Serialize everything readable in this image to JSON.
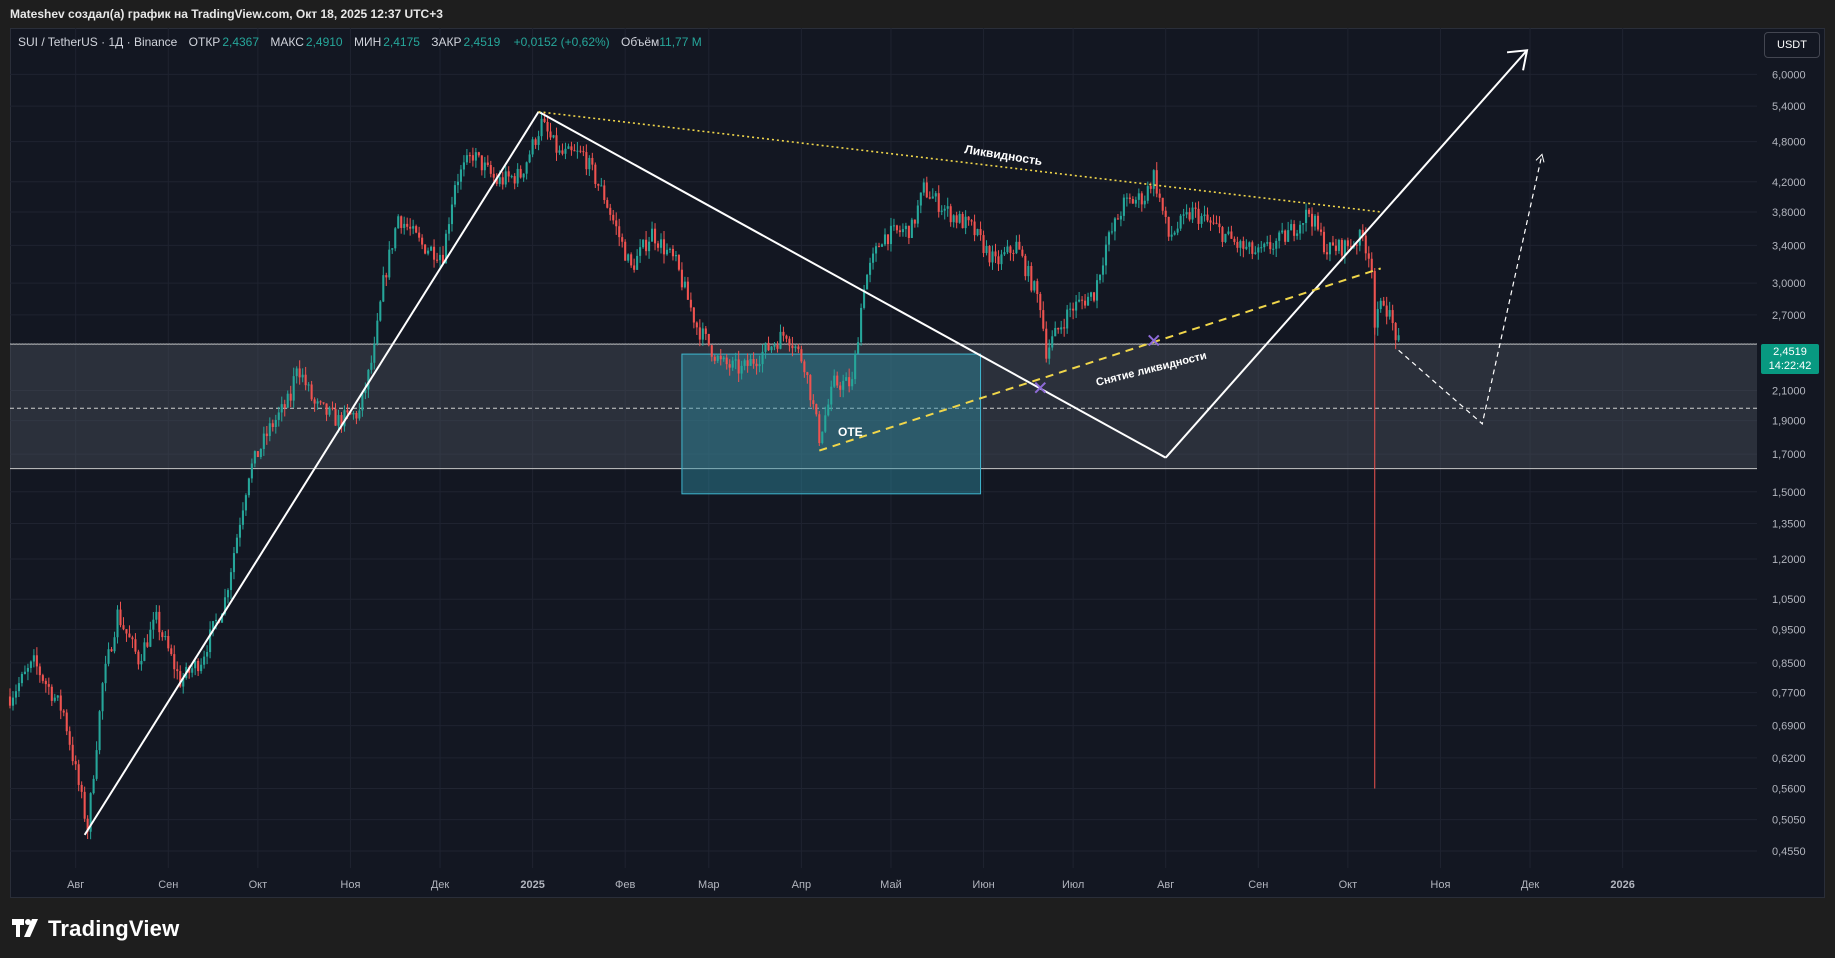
{
  "header": {
    "caption": "Mateshev создал(а) график на TradingView.com, Окт 18, 2025 12:37 UTC+3"
  },
  "legend": {
    "symbol": "SUI / TetherUS · 1Д · Binance",
    "open_label": "ОТКР",
    "open": "2,4367",
    "high_label": "МАКС",
    "high": "2,4910",
    "low_label": "МИН",
    "low": "2,4175",
    "close_label": "ЗАКР",
    "close": "2,4519",
    "change": "+0,0152 (+0,62%)",
    "volume_label": "Объём",
    "volume": "11,77 M"
  },
  "currency_button": "USDT",
  "last_price": {
    "value": "2,4519",
    "countdown": "14:22:42"
  },
  "annotations": {
    "liquidity": "Ликвидность",
    "liquidity_sweep": "Снятие ликвидности",
    "ote": "OTE"
  },
  "logo": "TradingView",
  "colors": {
    "up": "#26a69a",
    "down": "#ef5350",
    "background": "#131722",
    "zone": "#4a4f5c",
    "ote_box": "#2f8fa3",
    "trendline": "#ffffff",
    "liquidity_line": "#f0d64a"
  },
  "chart_data": {
    "type": "candlestick",
    "title": "SUI / TetherUS · 1Д · Binance",
    "y_scale": "log",
    "ylim": [
      0.43,
      7.0
    ],
    "y_ticks": [
      {
        "value": 6.0,
        "label": "6,0000"
      },
      {
        "value": 5.4,
        "label": "5,4000"
      },
      {
        "value": 4.8,
        "label": "4,8000"
      },
      {
        "value": 4.2,
        "label": "4,2000"
      },
      {
        "value": 3.8,
        "label": "3,8000"
      },
      {
        "value": 3.4,
        "label": "3,4000"
      },
      {
        "value": 3.0,
        "label": "3,0000"
      },
      {
        "value": 2.7,
        "label": "2,7000"
      },
      {
        "value": 2.1,
        "label": "2,1000"
      },
      {
        "value": 1.9,
        "label": "1,9000"
      },
      {
        "value": 1.7,
        "label": "1,7000"
      },
      {
        "value": 1.5,
        "label": "1,5000"
      },
      {
        "value": 1.35,
        "label": "1,3500"
      },
      {
        "value": 1.2,
        "label": "1,2000"
      },
      {
        "value": 1.05,
        "label": "1,0500"
      },
      {
        "value": 0.95,
        "label": "0,9500"
      },
      {
        "value": 0.85,
        "label": "0,8500"
      },
      {
        "value": 0.77,
        "label": "0,7700"
      },
      {
        "value": 0.69,
        "label": "0,6900"
      },
      {
        "value": 0.62,
        "label": "0,6200"
      },
      {
        "value": 0.56,
        "label": "0,5600"
      },
      {
        "value": 0.505,
        "label": "0,5050"
      },
      {
        "value": 0.455,
        "label": "0,4550"
      }
    ],
    "x_ticks": [
      {
        "date": "2024-08-01",
        "label": "Авг"
      },
      {
        "date": "2024-09-01",
        "label": "Сен"
      },
      {
        "date": "2024-10-01",
        "label": "Окт"
      },
      {
        "date": "2024-11-01",
        "label": "Ноя"
      },
      {
        "date": "2024-12-01",
        "label": "Дек"
      },
      {
        "date": "2025-01-01",
        "label": "2025"
      },
      {
        "date": "2025-02-01",
        "label": "Фев"
      },
      {
        "date": "2025-03-01",
        "label": "Мар"
      },
      {
        "date": "2025-04-01",
        "label": "Апр"
      },
      {
        "date": "2025-05-01",
        "label": "Май"
      },
      {
        "date": "2025-06-01",
        "label": "Июн"
      },
      {
        "date": "2025-07-01",
        "label": "Июл"
      },
      {
        "date": "2025-08-01",
        "label": "Авг"
      },
      {
        "date": "2025-09-01",
        "label": "Сен"
      },
      {
        "date": "2025-10-01",
        "label": "Окт"
      },
      {
        "date": "2025-11-01",
        "label": "Ноя"
      },
      {
        "date": "2025-12-01",
        "label": "Дек"
      },
      {
        "date": "2026-01-01",
        "label": "2026"
      }
    ],
    "xlim": [
      "2024-07-10",
      "2026-02-15"
    ],
    "price_path": [
      {
        "date": "2024-07-10",
        "close": 0.76
      },
      {
        "date": "2024-07-18",
        "close": 0.85
      },
      {
        "date": "2024-07-28",
        "close": 0.72
      },
      {
        "date": "2024-08-05",
        "close": 0.49
      },
      {
        "date": "2024-08-10",
        "close": 0.79
      },
      {
        "date": "2024-08-15",
        "close": 1.0
      },
      {
        "date": "2024-08-22",
        "close": 0.86
      },
      {
        "date": "2024-08-28",
        "close": 0.98
      },
      {
        "date": "2024-09-05",
        "close": 0.8
      },
      {
        "date": "2024-09-12",
        "close": 0.86
      },
      {
        "date": "2024-09-20",
        "close": 1.05
      },
      {
        "date": "2024-09-28",
        "close": 1.6
      },
      {
        "date": "2024-10-05",
        "close": 1.85
      },
      {
        "date": "2024-10-12",
        "close": 2.05
      },
      {
        "date": "2024-10-14",
        "close": 2.3
      },
      {
        "date": "2024-10-20",
        "close": 2.0
      },
      {
        "date": "2024-10-28",
        "close": 1.9
      },
      {
        "date": "2024-11-04",
        "close": 1.95
      },
      {
        "date": "2024-11-09",
        "close": 2.4
      },
      {
        "date": "2024-11-12",
        "close": 3.0
      },
      {
        "date": "2024-11-17",
        "close": 3.75
      },
      {
        "date": "2024-11-25",
        "close": 3.4
      },
      {
        "date": "2024-12-02",
        "close": 3.3
      },
      {
        "date": "2024-12-06",
        "close": 4.2
      },
      {
        "date": "2024-12-12",
        "close": 4.6
      },
      {
        "date": "2024-12-20",
        "close": 4.2
      },
      {
        "date": "2024-12-28",
        "close": 4.3
      },
      {
        "date": "2025-01-04",
        "close": 5.1
      },
      {
        "date": "2025-01-10",
        "close": 4.6
      },
      {
        "date": "2025-01-18",
        "close": 4.6
      },
      {
        "date": "2025-01-25",
        "close": 4.0
      },
      {
        "date": "2025-02-03",
        "close": 3.15
      },
      {
        "date": "2025-02-10",
        "close": 3.55
      },
      {
        "date": "2025-02-18",
        "close": 3.2
      },
      {
        "date": "2025-02-25",
        "close": 2.6
      },
      {
        "date": "2025-03-05",
        "close": 2.3
      },
      {
        "date": "2025-03-12",
        "close": 2.25
      },
      {
        "date": "2025-03-20",
        "close": 2.4
      },
      {
        "date": "2025-03-27",
        "close": 2.55
      },
      {
        "date": "2025-04-02",
        "close": 2.3
      },
      {
        "date": "2025-04-07",
        "close": 1.8
      },
      {
        "date": "2025-04-12",
        "close": 2.15
      },
      {
        "date": "2025-04-18",
        "close": 2.15
      },
      {
        "date": "2025-04-22",
        "close": 3.0
      },
      {
        "date": "2025-04-28",
        "close": 3.5
      },
      {
        "date": "2025-05-08",
        "close": 3.6
      },
      {
        "date": "2025-05-12",
        "close": 4.1
      },
      {
        "date": "2025-05-20",
        "close": 3.8
      },
      {
        "date": "2025-05-28",
        "close": 3.6
      },
      {
        "date": "2025-06-05",
        "close": 3.2
      },
      {
        "date": "2025-06-12",
        "close": 3.4
      },
      {
        "date": "2025-06-20",
        "close": 2.8
      },
      {
        "date": "2025-06-22",
        "close": 2.4
      },
      {
        "date": "2025-06-30",
        "close": 2.75
      },
      {
        "date": "2025-07-08",
        "close": 2.9
      },
      {
        "date": "2025-07-12",
        "close": 3.4
      },
      {
        "date": "2025-07-18",
        "close": 3.9
      },
      {
        "date": "2025-07-25",
        "close": 4.0
      },
      {
        "date": "2025-07-28",
        "close": 4.3
      },
      {
        "date": "2025-08-02",
        "close": 3.5
      },
      {
        "date": "2025-08-10",
        "close": 3.8
      },
      {
        "date": "2025-08-18",
        "close": 3.6
      },
      {
        "date": "2025-08-25",
        "close": 3.4
      },
      {
        "date": "2025-09-01",
        "close": 3.3
      },
      {
        "date": "2025-09-10",
        "close": 3.5
      },
      {
        "date": "2025-09-18",
        "close": 3.8
      },
      {
        "date": "2025-09-24",
        "close": 3.35
      },
      {
        "date": "2025-10-01",
        "close": 3.4
      },
      {
        "date": "2025-10-06",
        "close": 3.5
      },
      {
        "date": "2025-10-09",
        "close": 3.2
      },
      {
        "date": "2025-10-10",
        "close": 2.6
      },
      {
        "date": "2025-10-13",
        "close": 2.85
      },
      {
        "date": "2025-10-18",
        "close": 2.4519
      }
    ],
    "current_price": 2.4519,
    "flash_crash_wick": {
      "date": "2025-10-10",
      "low": 0.56
    },
    "zones": [
      {
        "name": "support-zone",
        "from": 1.62,
        "to": 2.45,
        "midline": 1.98
      },
      {
        "name": "ote-box",
        "from": 1.49,
        "to": 2.37,
        "start": "2025-02-20",
        "end": "2025-05-31"
      }
    ],
    "drawings": [
      {
        "name": "trend-up-1",
        "points": [
          [
            "2024-08-04",
            0.48
          ],
          [
            "2025-01-03",
            5.3
          ]
        ]
      },
      {
        "name": "trend-down",
        "points": [
          [
            "2025-01-03",
            5.3
          ],
          [
            "2025-08-01",
            1.68
          ]
        ]
      },
      {
        "name": "trend-up-2",
        "points": [
          [
            "2025-08-01",
            1.68
          ],
          [
            "2025-11-30",
            6.5
          ]
        ]
      },
      {
        "name": "liquidity-line",
        "points": [
          [
            "2025-01-03",
            5.3
          ],
          [
            "2025-10-12",
            3.8
          ]
        ]
      },
      {
        "name": "sweep-line",
        "points": [
          [
            "2025-04-07",
            1.72
          ],
          [
            "2025-10-12",
            3.15
          ]
        ]
      },
      {
        "name": "projection",
        "points": [
          [
            "2025-10-18",
            2.4
          ],
          [
            "2025-11-15",
            1.88
          ],
          [
            "2025-12-05",
            4.6
          ]
        ]
      }
    ]
  }
}
